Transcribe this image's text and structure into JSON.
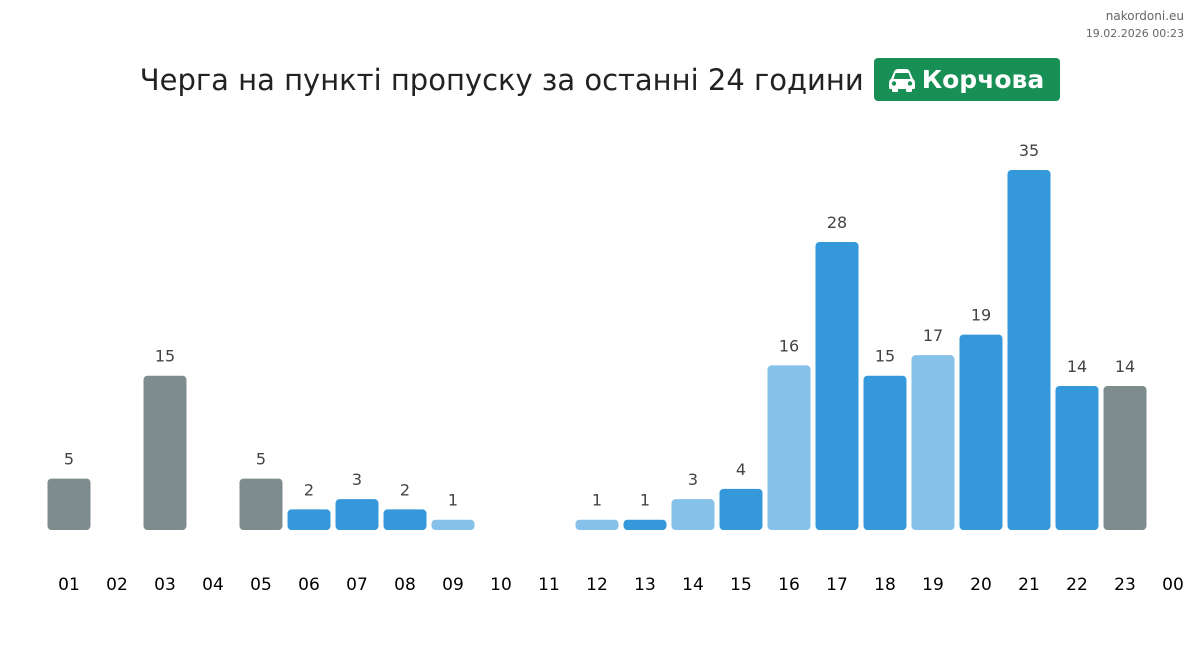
{
  "source": {
    "site": "nakordoni.eu",
    "timestamp": "19.02.2026 00:23"
  },
  "header": {
    "title": "Черга на пункті пропуску за останні 24 години",
    "badge_label": "Корчова",
    "badge_icon": "car-icon"
  },
  "colors": {
    "gray": "#7f8c8d",
    "blue": "#3598db",
    "light_blue": "#85c1e9",
    "badge": "#178f55"
  },
  "chart_data": {
    "type": "bar",
    "title": "Черга на пункті пропуску за останні 24 години",
    "categories": [
      "01",
      "02",
      "03",
      "04",
      "05",
      "06",
      "07",
      "08",
      "09",
      "10",
      "11",
      "12",
      "13",
      "14",
      "15",
      "16",
      "17",
      "18",
      "19",
      "20",
      "21",
      "22",
      "23",
      "00"
    ],
    "values": [
      5,
      0,
      15,
      0,
      5,
      2,
      3,
      2,
      1,
      0,
      0,
      1,
      1,
      3,
      4,
      16,
      28,
      15,
      17,
      19,
      35,
      14,
      14,
      null
    ],
    "value_labels": [
      "5",
      "",
      "15",
      "",
      "5",
      "2",
      "3",
      "2",
      "1",
      "",
      "",
      "1",
      "1",
      "3",
      "4",
      "16",
      "28",
      "15",
      "17",
      "19",
      "35",
      "14",
      "14",
      ""
    ],
    "bar_colors": [
      "gray",
      null,
      "gray",
      null,
      "gray",
      "blue",
      "blue",
      "blue",
      "light_blue",
      null,
      null,
      "light_blue",
      "blue",
      "light_blue",
      "blue",
      "light_blue",
      "blue",
      "blue",
      "light_blue",
      "blue",
      "blue",
      "blue",
      "gray",
      null
    ],
    "ylim": [
      0,
      35
    ],
    "grid": false,
    "legend": "none"
  }
}
